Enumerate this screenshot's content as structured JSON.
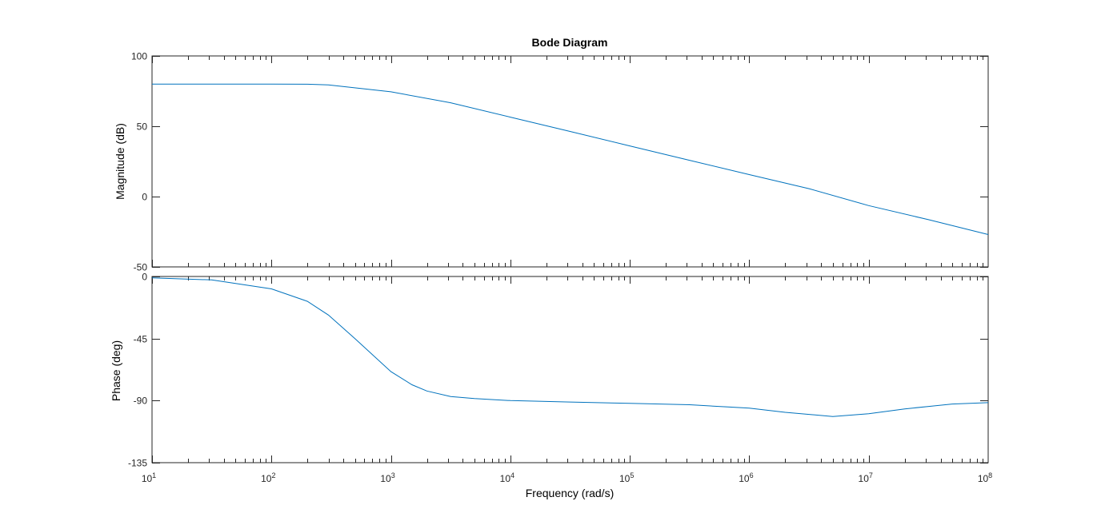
{
  "chart_data": {
    "type": "line",
    "title": "Bode Diagram",
    "xlabel": "Frequency  (rad/s)",
    "xscale": "log",
    "xlim": [
      10,
      100000000
    ],
    "x_ticks": [
      {
        "base": "10",
        "exp": "1"
      },
      {
        "base": "10",
        "exp": "2"
      },
      {
        "base": "10",
        "exp": "3"
      },
      {
        "base": "10",
        "exp": "4"
      },
      {
        "base": "10",
        "exp": "5"
      },
      {
        "base": "10",
        "exp": "6"
      },
      {
        "base": "10",
        "exp": "7"
      },
      {
        "base": "10",
        "exp": "8"
      }
    ],
    "line_color": "#0072BD",
    "grid": false,
    "panels": [
      {
        "ylabel": "Magnitude (dB)",
        "ylim": [
          -50,
          100
        ],
        "yticks": [
          100,
          50,
          0,
          -50
        ],
        "ytick_labels": [
          "100",
          "50",
          "0",
          "-50"
        ],
        "series": {
          "x": [
            10,
            31.6,
            100,
            200,
            300,
            1000,
            3162,
            10000,
            31623,
            100000,
            316228,
            1000000,
            3162278,
            10000000,
            31622777,
            100000000
          ],
          "y": [
            80,
            80,
            80,
            79.9,
            79.4,
            74.5,
            66.7,
            56.5,
            46.3,
            36,
            25.8,
            15.6,
            5.6,
            -6.4,
            -16.4,
            -27
          ]
        }
      },
      {
        "ylabel": "Phase (deg)",
        "ylim": [
          -135,
          0
        ],
        "yticks": [
          0,
          -45,
          -90,
          -135
        ],
        "ytick_labels": [
          "0",
          "-45",
          "-90",
          "-135"
        ],
        "series": {
          "x": [
            10,
            31.6,
            100,
            200,
            300,
            500,
            1000,
            1500,
            2000,
            3162,
            5000,
            10000,
            31623,
            100000,
            316228,
            1000000,
            2000000,
            5000000,
            10000000,
            20000000,
            50000000,
            100000000
          ],
          "y": [
            -1,
            -2.5,
            -9,
            -18,
            -28,
            -45,
            -69,
            -78.5,
            -83,
            -87,
            -88.5,
            -90,
            -91,
            -92,
            -93,
            -95.5,
            -98.5,
            -101.5,
            -99.5,
            -96,
            -92.5,
            -91.5
          ]
        }
      }
    ]
  }
}
